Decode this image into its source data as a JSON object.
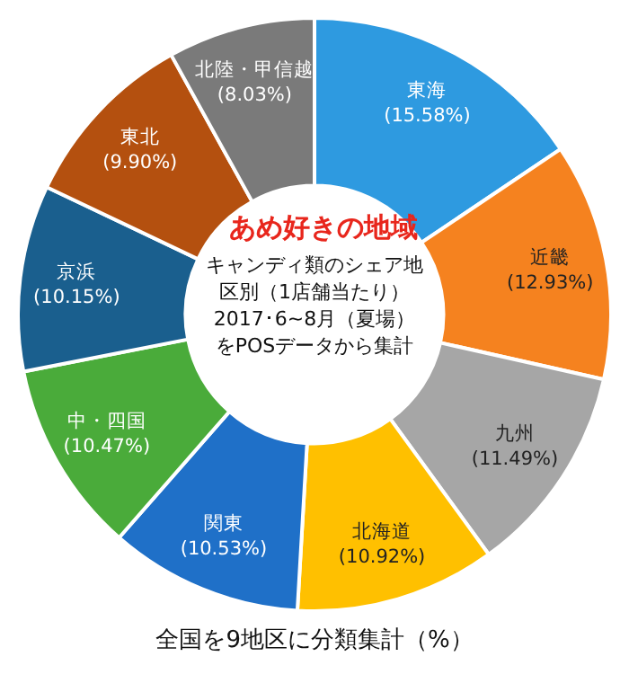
{
  "chart_data": {
    "type": "donut",
    "title": "あめ好きの地域",
    "subtitle": "キャンディ類のシェア地区別（1店舗当たり）2017･6~8月（夏場）をPOSデータから集計",
    "categories": [
      "東海",
      "近畿",
      "九州",
      "北海道",
      "関東",
      "中・四国",
      "京浜",
      "東北",
      "北陸・甲信越"
    ],
    "values": [
      15.58,
      12.93,
      11.49,
      10.92,
      10.53,
      10.47,
      10.15,
      9.9,
      8.03
    ],
    "value_labels": [
      "(15.58%)",
      "(12.93%)",
      "(11.49%)",
      "(10.92%)",
      "(10.53%)",
      "(10.47%)",
      "(10.15%)",
      "(9.90%)",
      "(8.03%)"
    ],
    "colors": [
      "#2e9ae0",
      "#f5821f",
      "#a6a6a6",
      "#ffc000",
      "#1f70c8",
      "#4aab3a",
      "#1a5f8e",
      "#b4500f",
      "#7a7a7a"
    ],
    "annotations": [
      "全国を9地区に分類集計（%）"
    ],
    "legend": false
  }
}
